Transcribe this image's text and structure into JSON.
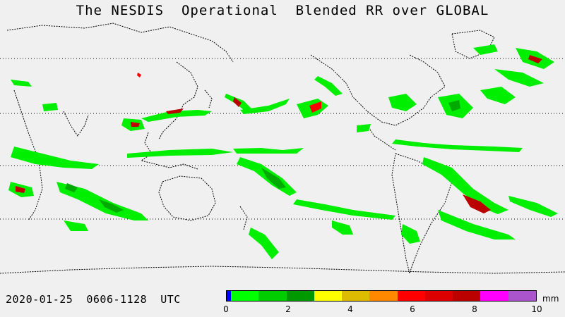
{
  "title": "The NESDIS  Operational  Blended RR over GLOBAL",
  "date_range": "2020-01-25  0606-1128  UTC",
  "legend": {
    "unit": "mm",
    "ticks": [
      "0",
      "2",
      "4",
      "6",
      "8",
      "10"
    ],
    "colors": [
      "#0000ff",
      "#00ff00",
      "#00cc00",
      "#009900",
      "#ffff00",
      "#ddbb00",
      "#ff8800",
      "#ff0000",
      "#dd0000",
      "#bb0000",
      "#ff00ff",
      "#aa55cc"
    ]
  },
  "map": {
    "land_color": "#f0f0f0",
    "coast_color": "#000000",
    "gridline_color": "#000000",
    "precip_colors": {
      "light": "#00ee00",
      "moderate": "#00aa00",
      "heavy": "#ff0000",
      "very_heavy": "#bb0000",
      "intense": "#ffff00"
    }
  }
}
